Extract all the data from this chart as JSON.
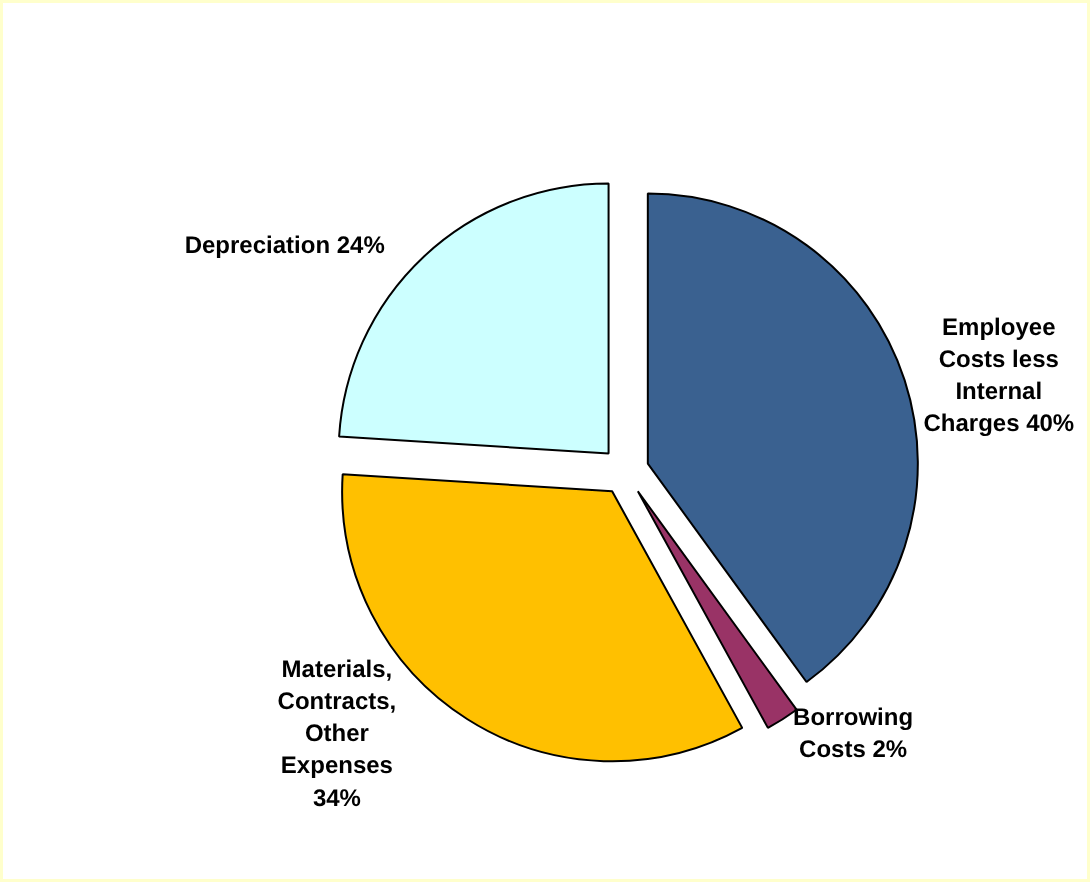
{
  "chart_data": {
    "type": "pie",
    "categories": [
      "Employee\nCosts less\nInternal\nCharges 40%",
      "Borrowing\nCosts 2%",
      "Materials,\nContracts,\nOther\nExpenses\n34%",
      "Depreciation 24%"
    ],
    "values": [
      40,
      2,
      34,
      24
    ],
    "colors": [
      "#3a6190",
      "#993366",
      "#ffc000",
      "#ccffff"
    ]
  }
}
